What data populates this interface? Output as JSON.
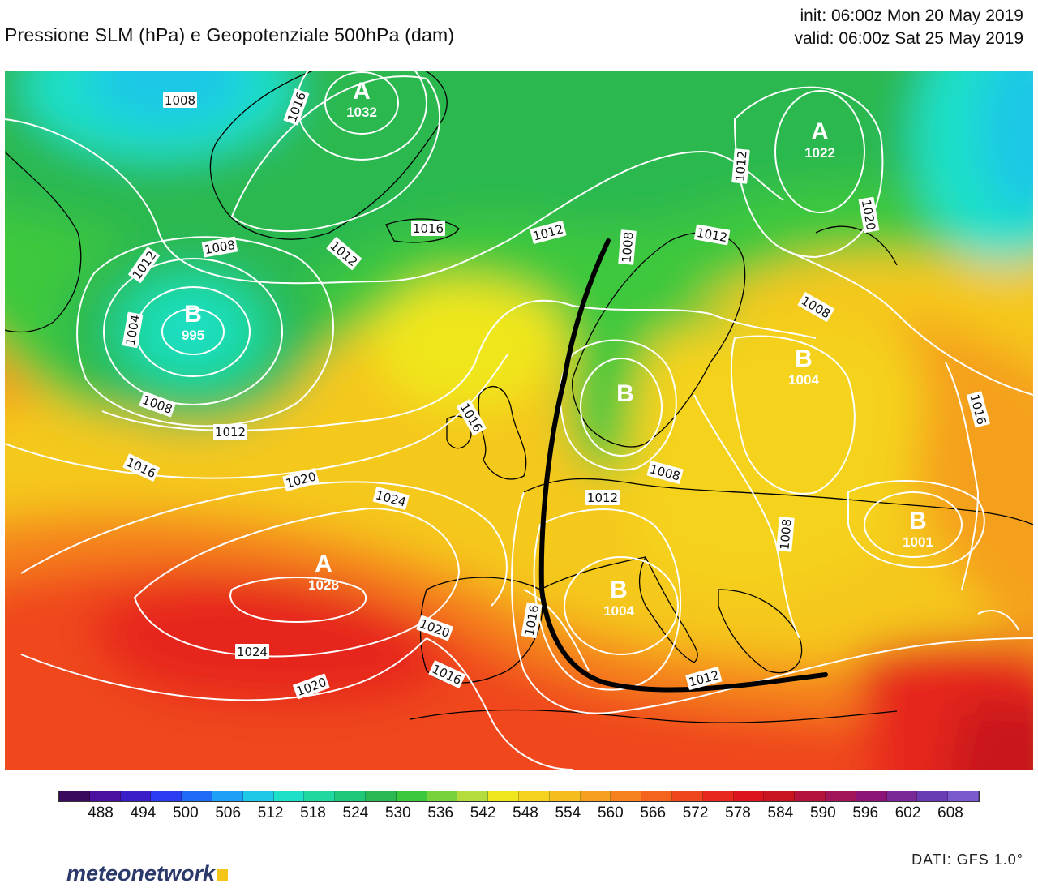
{
  "header": {
    "title": "Pressione SLM (hPa) e Geopotenziale 500hPa (dam)",
    "init": "init: 06:00z Mon 20 May 2019",
    "valid": "valid: 06:00z Sat 25 May 2019"
  },
  "map": {
    "isobars": [
      {
        "label": "1008"
      },
      {
        "label": "1016"
      },
      {
        "label": "1012"
      },
      {
        "label": "1008"
      },
      {
        "label": "1004"
      },
      {
        "label": "1008"
      },
      {
        "label": "1012"
      },
      {
        "label": "1016"
      },
      {
        "label": "1016"
      },
      {
        "label": "1012"
      },
      {
        "label": "1012"
      },
      {
        "label": "1008"
      },
      {
        "label": "1016"
      },
      {
        "label": "1020"
      },
      {
        "label": "1012"
      },
      {
        "label": "1008"
      },
      {
        "label": "1012"
      },
      {
        "label": "1008"
      },
      {
        "label": "1012"
      },
      {
        "label": "1008"
      },
      {
        "label": "1020"
      },
      {
        "label": "1024"
      },
      {
        "label": "1024"
      },
      {
        "label": "1020"
      },
      {
        "label": "1020"
      },
      {
        "label": "1016"
      },
      {
        "label": "1016"
      },
      {
        "label": "1012"
      },
      {
        "label": "1016"
      }
    ],
    "pressure_centers": [
      {
        "type": "A",
        "value": "1032"
      },
      {
        "type": "A",
        "value": "1022"
      },
      {
        "type": "B",
        "value": "995"
      },
      {
        "type": "B",
        "value": "1004"
      },
      {
        "type": "B",
        "value": "1001"
      },
      {
        "type": "B",
        "value": "1004"
      },
      {
        "type": "A",
        "value": "1028"
      },
      {
        "type": "B",
        "value": ""
      }
    ],
    "annotation": "black curved line drawn over western/central Europe"
  },
  "colorbar": {
    "ticks": [
      "488",
      "494",
      "500",
      "506",
      "512",
      "518",
      "524",
      "530",
      "536",
      "542",
      "548",
      "554",
      "560",
      "566",
      "572",
      "578",
      "584",
      "590",
      "596",
      "602",
      "608"
    ],
    "colors": [
      "#3a0a5e",
      "#4a10a0",
      "#3a1ec8",
      "#2a3cf0",
      "#1e6cf5",
      "#1ea0f5",
      "#1ec8e6",
      "#1ee0c8",
      "#1ed8a0",
      "#1ec878",
      "#2ab850",
      "#3cc83c",
      "#78d23c",
      "#b4dc3c",
      "#f0e61e",
      "#f5d21e",
      "#f5be1e",
      "#f5a01e",
      "#f5821e",
      "#f5641e",
      "#f0461e",
      "#e6281e",
      "#dc141e",
      "#c8141e",
      "#b4143c",
      "#a0145a",
      "#8c1478",
      "#7a2896",
      "#6a3cb4",
      "#7a5acd"
    ]
  },
  "footer": {
    "brand": "meteonetwork",
    "source": "DATI:  GFS  1.0°"
  }
}
